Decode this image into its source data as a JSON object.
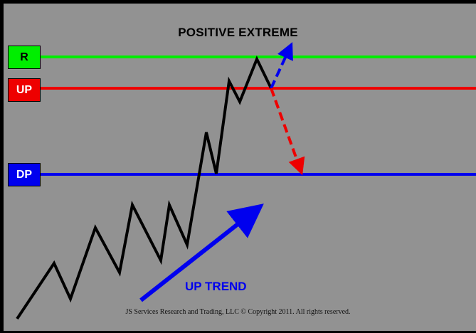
{
  "title": "POSITIVE EXTREME",
  "levels": [
    {
      "label": "R",
      "color": "#00ee00",
      "text_color": "#000000"
    },
    {
      "label": "UP",
      "color": "#ee0000",
      "text_color": "#ffffff"
    },
    {
      "label": "DP",
      "color": "#0000ee",
      "text_color": "#ffffff"
    }
  ],
  "trend_label": "UP TREND",
  "copyright": "JS Services Research and Trading, LLC © Copyright 2011. All rights reserved.",
  "colors": {
    "background": "#929292",
    "frame": "#000000",
    "price_line": "#000000",
    "up_arrow": "#0000ee",
    "down_arrow": "#ee0000"
  }
}
